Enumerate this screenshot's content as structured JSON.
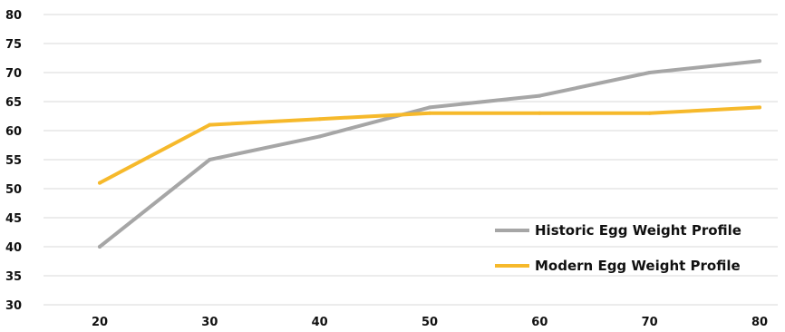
{
  "chart_data": {
    "type": "line",
    "title": "",
    "xlabel": "",
    "ylabel": "",
    "x": [
      20,
      30,
      40,
      50,
      60,
      70,
      80
    ],
    "x_tick_labels": [
      "20",
      "30",
      "40",
      "50",
      "60",
      "70",
      "80"
    ],
    "ylim": [
      30,
      80
    ],
    "y_ticks": [
      30,
      35,
      40,
      45,
      50,
      55,
      60,
      65,
      70,
      75,
      80
    ],
    "y_tick_labels": [
      "30",
      "35",
      "40",
      "45",
      "50",
      "55",
      "60",
      "65",
      "70",
      "75",
      "80"
    ],
    "grid": "horizontal",
    "legend_position": "bottom-right",
    "series": [
      {
        "name": "Historic Egg Weight Profile",
        "color": "#a6a6a6",
        "values": [
          40,
          55,
          59,
          64,
          66,
          70,
          72
        ]
      },
      {
        "name": "Modern Egg Weight Profile",
        "color": "#f6b92b",
        "values": [
          51,
          61,
          62,
          63,
          63,
          63,
          64
        ]
      }
    ]
  }
}
